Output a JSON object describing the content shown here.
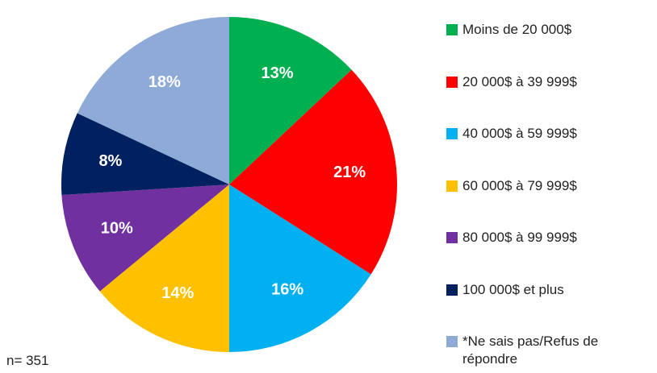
{
  "chart_data": {
    "type": "pie",
    "categories": [
      "Moins de 20 000$",
      "20 000$ à 39 999$",
      "40 000$ à 59 999$",
      "60 000$ à 79 999$",
      "80 000$ à 99 999$",
      "100 000$ et plus",
      "*Ne sais pas/Refus de répondre"
    ],
    "values": [
      13,
      21,
      16,
      14,
      10,
      8,
      18
    ],
    "value_labels": [
      "13%",
      "21%",
      "16%",
      "14%",
      "10%",
      "8%",
      "18%"
    ],
    "colors": [
      "#00b050",
      "#ff0000",
      "#00b0f0",
      "#ffc000",
      "#7030a0",
      "#002060",
      "#8eaad6"
    ],
    "annotation": "n= 351"
  }
}
